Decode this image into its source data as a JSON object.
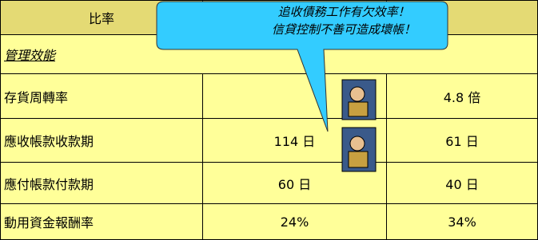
{
  "header": {
    "title": "比率"
  },
  "section": "管理效能",
  "rows": [
    {
      "label": "存貨周轉率",
      "col3": "4.8 倍"
    },
    {
      "label": "應收帳款收款期",
      "col2": "114 日",
      "col3": "61 日"
    },
    {
      "label": "應付帳款付款期",
      "col2": "60 日",
      "col3": "40 日"
    },
    {
      "label": "動用資金報酬率",
      "col2": "24%",
      "col3": "34%"
    }
  ],
  "callout": {
    "lines": [
      "追收債務工作有欠效率！",
      "信貸控制不善可造成壞帳！"
    ]
  }
}
